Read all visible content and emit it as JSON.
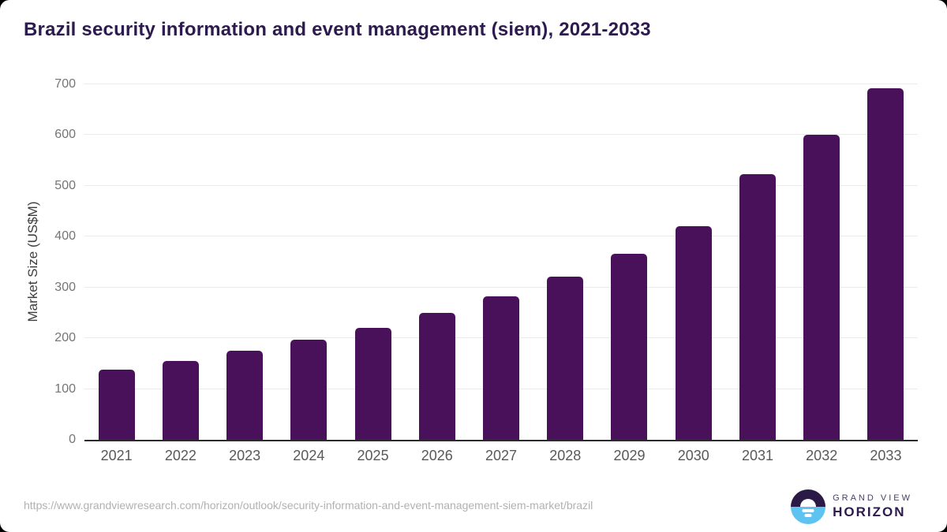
{
  "header": {
    "title": "Brazil security information and event management (siem), 2021-2033"
  },
  "chart_data": {
    "type": "bar",
    "categories": [
      "2021",
      "2022",
      "2023",
      "2024",
      "2025",
      "2026",
      "2027",
      "2028",
      "2029",
      "2030",
      "2031",
      "2032",
      "2033"
    ],
    "values": [
      138,
      155,
      175,
      197,
      221,
      250,
      283,
      322,
      367,
      420,
      523,
      601,
      693
    ],
    "title": "Brazil security information and event management (siem), 2021-2033",
    "xlabel": "",
    "ylabel": "Market Size (US$M)",
    "ylim": [
      0,
      700
    ],
    "yticks": [
      0,
      100,
      200,
      300,
      400,
      500,
      600,
      700
    ],
    "grid": true,
    "legend": "none",
    "bar_color": "#49115a"
  },
  "footer": {
    "source_url": "https://www.grandviewresearch.com/horizon/outlook/security-information-and-event-management-siem-market/brazil",
    "logo": {
      "line1": "GRAND VIEW",
      "line2": "HORIZON"
    }
  },
  "colors": {
    "title": "#2d1a4e",
    "bar": "#49115a",
    "gridline": "#eaeaea",
    "axis_line": "#2b2b2b",
    "logo_dark": "#2b1a45",
    "logo_blue": "#5fc3f1"
  }
}
